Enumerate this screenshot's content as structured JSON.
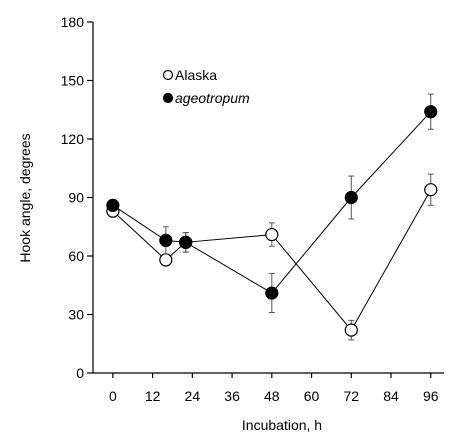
{
  "chart_data": {
    "type": "line",
    "title": "",
    "xlabel": "Incubation, h",
    "ylabel": "Hook angle, degrees",
    "xlim": [
      -6,
      100
    ],
    "ylim": [
      0,
      180
    ],
    "x_ticks": [
      0,
      12,
      24,
      36,
      48,
      60,
      72,
      84,
      96
    ],
    "y_ticks": [
      0,
      30,
      60,
      90,
      120,
      150,
      180
    ],
    "grid": false,
    "legend_position": "top-left",
    "series": [
      {
        "name": "Alaska",
        "marker": "open-circle",
        "color": "#000000",
        "x": [
          0,
          16,
          22,
          48,
          72,
          96
        ],
        "y": [
          83,
          58,
          67,
          71,
          22,
          94
        ],
        "err": [
          3,
          3,
          5,
          6,
          5,
          8
        ]
      },
      {
        "name": "ageotropum",
        "marker": "filled-circle",
        "color": "#000000",
        "x": [
          0,
          16,
          22,
          48,
          72,
          96
        ],
        "y": [
          86,
          68,
          67,
          41,
          90,
          134
        ],
        "err": [
          3,
          7,
          5,
          10,
          11,
          9
        ]
      }
    ]
  }
}
